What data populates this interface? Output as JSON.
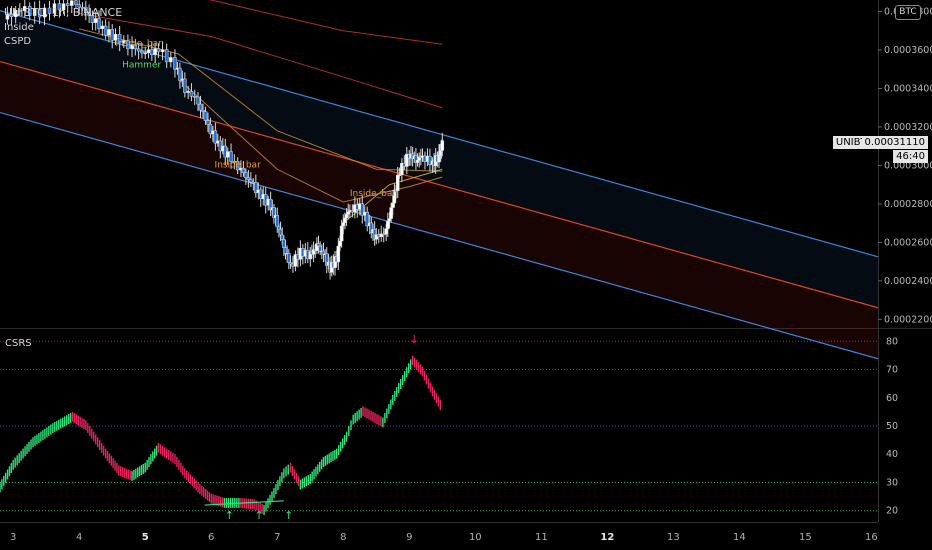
{
  "header": {
    "symbol_line": "UNIBTC, 1h, BINANCE",
    "line2": "Inside",
    "line3": "CSPD",
    "currency_badge": "BTC"
  },
  "lower_pane": {
    "title": "CSRS"
  },
  "price_label": {
    "symbol": "UNIBTC",
    "value": "0.00031110",
    "secondary": "46:40"
  },
  "colors": {
    "background": "#000000",
    "price_axis_text": "#b8b8b8",
    "candle": "#ffffff",
    "regression_mid": "#e0451f",
    "regression_bands": "#3a86d9",
    "csrs_up": "#2ee67a",
    "csrs_down": "#e8235e",
    "level_80": "#e8235e",
    "level_70": "#e8235e",
    "level_50": "#3a6fd9",
    "level_30": "#2ee67a",
    "level_20": "#2ee67a"
  },
  "chart_data": [
    {
      "type": "candlestick",
      "name": "price",
      "y_ticks": [
        "0.00038000",
        "0.00036000",
        "0.00034000",
        "0.00032000",
        "0.00030000",
        "0.00028000",
        "0.00026000",
        "0.00024000",
        "0.00022000"
      ],
      "ylim": [
        0.000216,
        0.000386
      ],
      "x_ticks": [
        "3",
        "4",
        "5",
        "6",
        "7",
        "8",
        "9",
        "10",
        "11",
        "12",
        "13",
        "14",
        "15",
        "16"
      ],
      "bold_x_ticks": [
        "5",
        "12"
      ],
      "x_range_days": [
        2.8,
        16.1
      ],
      "close_path": [
        [
          2.85,
          0.000376
        ],
        [
          3.1,
          0.000381
        ],
        [
          3.4,
          0.000379
        ],
        [
          3.7,
          0.000383
        ],
        [
          3.95,
          0.000385
        ],
        [
          4.15,
          0.000378
        ],
        [
          4.35,
          0.000371
        ],
        [
          4.55,
          0.000366
        ],
        [
          4.8,
          0.000361
        ],
        [
          5.0,
          0.000358
        ],
        [
          5.2,
          0.00036
        ],
        [
          5.45,
          0.000352
        ],
        [
          5.6,
          0.00034
        ],
        [
          5.8,
          0.000333
        ],
        [
          5.95,
          0.000321
        ],
        [
          6.1,
          0.000311
        ],
        [
          6.25,
          0.000305
        ],
        [
          6.45,
          0.000297
        ],
        [
          6.6,
          0.000291
        ],
        [
          6.75,
          0.000284
        ],
        [
          6.9,
          0.000279
        ],
        [
          7.0,
          0.00027
        ],
        [
          7.1,
          0.000258
        ],
        [
          7.2,
          0.000248
        ],
        [
          7.35,
          0.000255
        ],
        [
          7.5,
          0.000253
        ],
        [
          7.6,
          0.000258
        ],
        [
          7.7,
          0.000254
        ],
        [
          7.8,
          0.000246
        ],
        [
          7.9,
          0.000252
        ],
        [
          8.0,
          0.000272
        ],
        [
          8.1,
          0.000277
        ],
        [
          8.25,
          0.000279
        ],
        [
          8.4,
          0.000268
        ],
        [
          8.5,
          0.000262
        ],
        [
          8.65,
          0.000266
        ],
        [
          8.75,
          0.000281
        ],
        [
          8.85,
          0.000297
        ],
        [
          9.0,
          0.000306
        ],
        [
          9.1,
          0.000303
        ],
        [
          9.2,
          0.000305
        ],
        [
          9.35,
          0.000301
        ],
        [
          9.45,
          0.000305
        ],
        [
          9.5,
          0.000311
        ]
      ],
      "regression_channel": {
        "start": [
          2.8,
          0.000354
        ],
        "end": [
          16.1,
          0.000226
        ],
        "band_offset": 2.65e-05
      },
      "moving_averages": [
        {
          "color": "#c93a2a",
          "points": [
            [
              4.0,
              0.000398
            ],
            [
              6.0,
              0.000386
            ],
            [
              8.0,
              0.00037
            ],
            [
              9.5,
              0.000363
            ]
          ]
        },
        {
          "color": "#c93a2a",
          "points": [
            [
              4.0,
              0.000379
            ],
            [
              6.0,
              0.000367
            ],
            [
              8.0,
              0.000346
            ],
            [
              9.5,
              0.00033
            ]
          ]
        },
        {
          "color": "#d08a2a",
          "points": [
            [
              4.0,
              0.000371
            ],
            [
              5.5,
              0.000358
            ],
            [
              7.0,
              0.000318
            ],
            [
              8.5,
              0.000298
            ],
            [
              9.5,
              0.000297
            ]
          ]
        },
        {
          "color": "#d08a2a",
          "points": [
            [
              5.5,
              0.000345
            ],
            [
              7.0,
              0.000298
            ],
            [
              8.0,
              0.000281
            ],
            [
              9.0,
              0.000289
            ],
            [
              9.5,
              0.000294
            ]
          ]
        },
        {
          "color": "#c8c832",
          "points": [
            [
              8.0,
              0.00027
            ],
            [
              8.7,
              0.00029
            ],
            [
              9.5,
              0.000298
            ]
          ]
        }
      ],
      "annotations": [
        {
          "text": "Inside_bar",
          "color": "#e0a030",
          "x": 4.55,
          "y": 0.000362
        },
        {
          "text": "Hammer",
          "color": "#5ad86a",
          "x": 4.65,
          "y": 0.000351
        },
        {
          "text": "Inside_bar",
          "color": "#e0a030",
          "x": 6.05,
          "y": 0.000299
        },
        {
          "text": "Inside_bar",
          "color": "#e0a030",
          "x": 8.1,
          "y": 0.000284
        }
      ]
    },
    {
      "type": "oscillator",
      "name": "CSRS",
      "y_ticks": [
        80,
        70,
        60,
        50,
        40,
        30,
        20
      ],
      "ylim": [
        16,
        84
      ],
      "levels": [
        80,
        70,
        50,
        30,
        20
      ],
      "values_by_day": [
        [
          2.8,
          30
        ],
        [
          3.0,
          38
        ],
        [
          3.3,
          46
        ],
        [
          3.6,
          51
        ],
        [
          3.9,
          55
        ],
        [
          4.1,
          52
        ],
        [
          4.25,
          47
        ],
        [
          4.4,
          42
        ],
        [
          4.6,
          36
        ],
        [
          4.8,
          34
        ],
        [
          5.0,
          37
        ],
        [
          5.2,
          44
        ],
        [
          5.45,
          40
        ],
        [
          5.6,
          35
        ],
        [
          5.8,
          30
        ],
        [
          6.0,
          26
        ],
        [
          6.2,
          24.5
        ],
        [
          6.45,
          24.5
        ],
        [
          6.65,
          24
        ],
        [
          6.8,
          22
        ],
        [
          6.95,
          28
        ],
        [
          7.1,
          35
        ],
        [
          7.2,
          37
        ],
        [
          7.35,
          31
        ],
        [
          7.5,
          33
        ],
        [
          7.7,
          39
        ],
        [
          7.9,
          42
        ],
        [
          8.05,
          48
        ],
        [
          8.15,
          54
        ],
        [
          8.3,
          57
        ],
        [
          8.45,
          55
        ],
        [
          8.6,
          53
        ],
        [
          8.75,
          61
        ],
        [
          8.9,
          68
        ],
        [
          9.05,
          75
        ],
        [
          9.2,
          71
        ],
        [
          9.35,
          64
        ],
        [
          9.5,
          58
        ]
      ],
      "signal_arrows": [
        {
          "x": 6.25,
          "dir": "up",
          "color": "#2ee67a"
        },
        {
          "x": 6.7,
          "dir": "up",
          "color": "#2ee67a"
        },
        {
          "x": 7.15,
          "dir": "up",
          "color": "#2ee67a"
        },
        {
          "x": 9.05,
          "dir": "down",
          "color": "#e8235e"
        }
      ]
    }
  ]
}
